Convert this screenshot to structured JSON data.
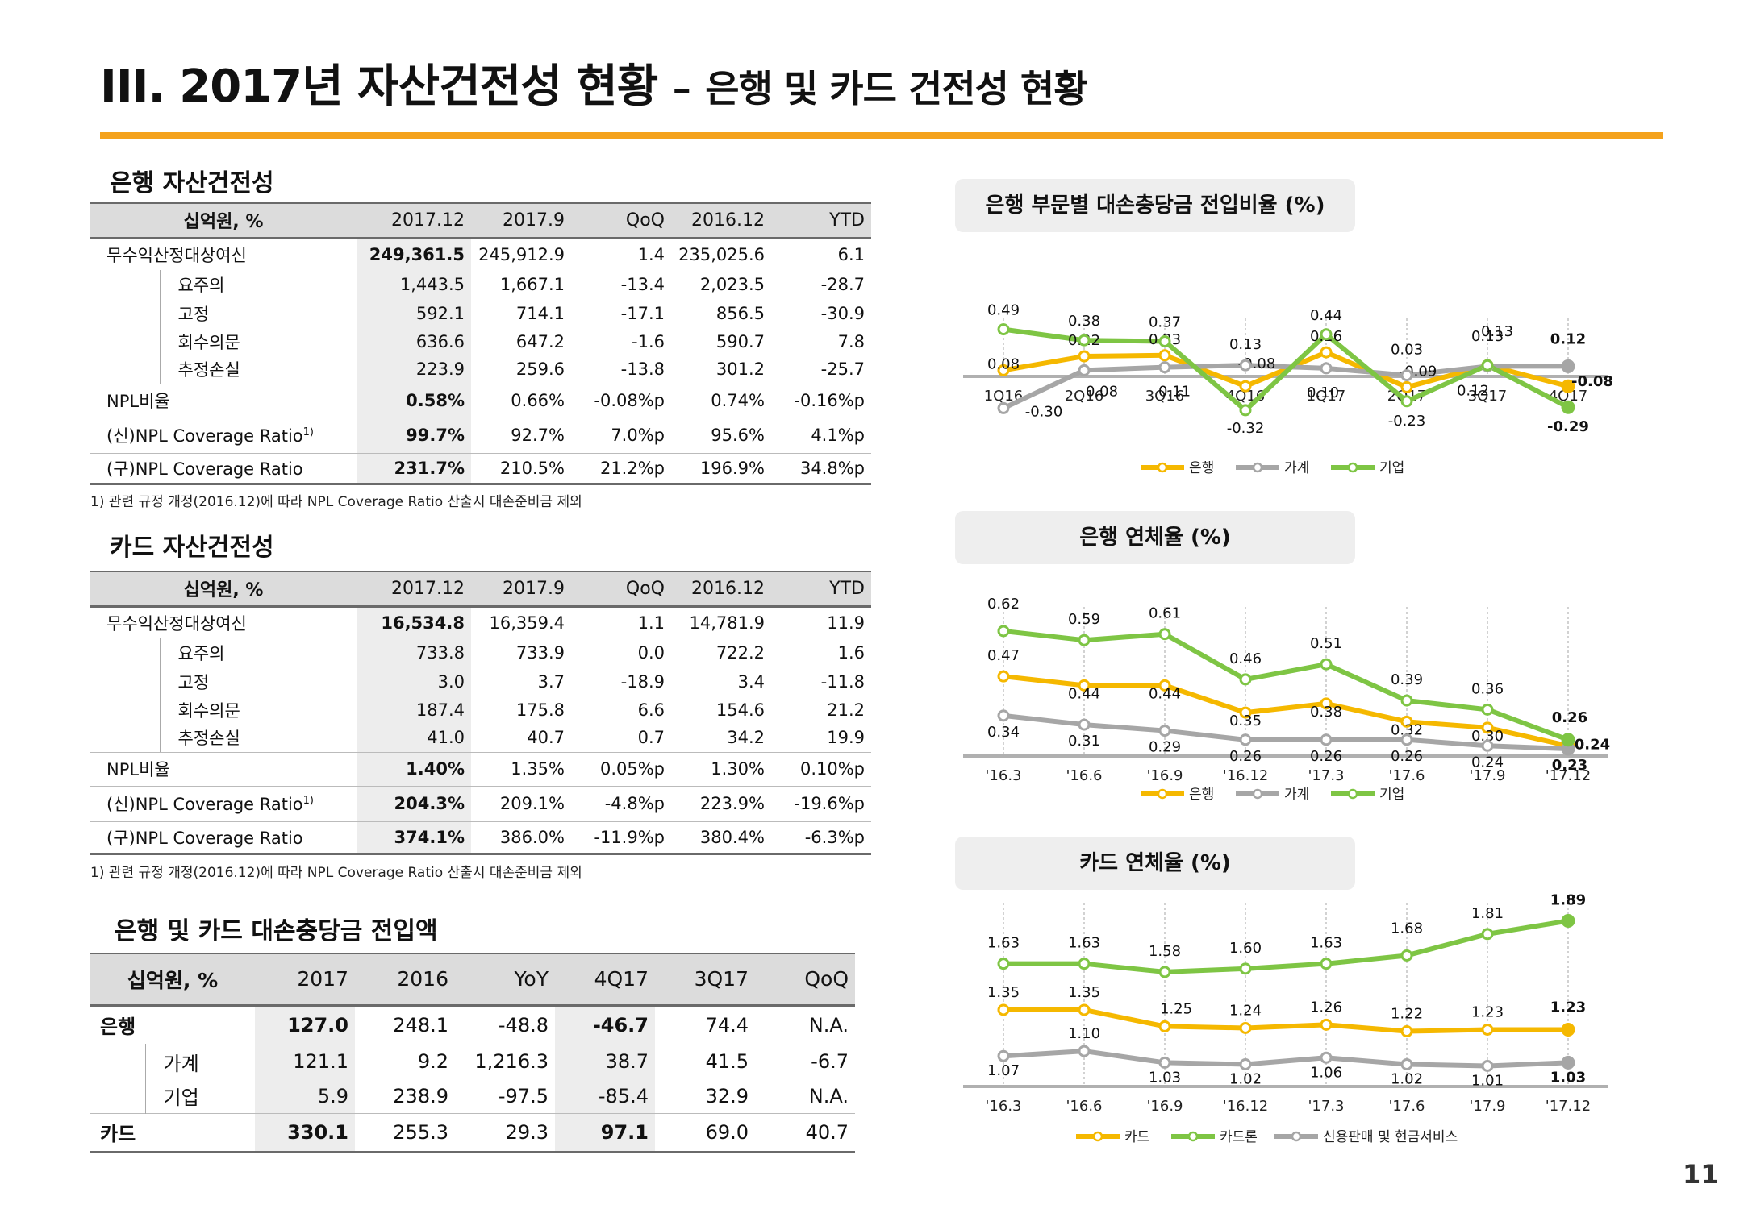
{
  "header": {
    "title_main": "III. 2017년 자산건전성 현황",
    "title_dash": "–",
    "title_sub": "은행 및 카드 건전성 현황"
  },
  "bank_asset": {
    "title": "은행 자산건전성",
    "columns": [
      "십억원, %",
      "2017.12",
      "2017.9",
      "QoQ",
      "2016.12",
      "YTD"
    ],
    "rows": [
      {
        "label": "무수익산정대상여신",
        "level": 0,
        "values": [
          "249,361.5",
          "245,912.9",
          "1.4",
          "235,025.6",
          "6.1"
        ]
      },
      {
        "label": "요주의",
        "level": 1,
        "values": [
          "1,443.5",
          "1,667.1",
          "-13.4",
          "2,023.5",
          "-28.7"
        ]
      },
      {
        "label": "고정",
        "level": 1,
        "values": [
          "592.1",
          "714.1",
          "-17.1",
          "856.5",
          "-30.9"
        ]
      },
      {
        "label": "회수의문",
        "level": 1,
        "values": [
          "636.6",
          "647.2",
          "-1.6",
          "590.7",
          "7.8"
        ]
      },
      {
        "label": "추정손실",
        "level": 1,
        "values": [
          "223.9",
          "259.6",
          "-13.8",
          "301.2",
          "-25.7"
        ]
      },
      {
        "label": "NPL비율",
        "level": 0,
        "values": [
          "0.58%",
          "0.66%",
          "-0.08%p",
          "0.74%",
          "-0.16%p"
        ]
      },
      {
        "label": "(신)NPL Coverage Ratio",
        "sup": "1)",
        "level": 0,
        "values": [
          "99.7%",
          "92.7%",
          "7.0%p",
          "95.6%",
          "4.1%p"
        ]
      },
      {
        "label": "(구)NPL Coverage Ratio",
        "level": 0,
        "values": [
          "231.7%",
          "210.5%",
          "21.2%p",
          "196.9%",
          "34.8%p"
        ]
      }
    ],
    "note": "1) 관련 규정 개정(2016.12)에 따라 NPL Coverage Ratio 산출시 대손준비금 제외"
  },
  "card_asset": {
    "title": "카드 자산건전성",
    "columns": [
      "십억원, %",
      "2017.12",
      "2017.9",
      "QoQ",
      "2016.12",
      "YTD"
    ],
    "rows": [
      {
        "label": "무수익산정대상여신",
        "level": 0,
        "values": [
          "16,534.8",
          "16,359.4",
          "1.1",
          "14,781.9",
          "11.9"
        ]
      },
      {
        "label": "요주의",
        "level": 1,
        "values": [
          "733.8",
          "733.9",
          "0.0",
          "722.2",
          "1.6"
        ]
      },
      {
        "label": "고정",
        "level": 1,
        "values": [
          "3.0",
          "3.7",
          "-18.9",
          "3.4",
          "-11.8"
        ]
      },
      {
        "label": "회수의문",
        "level": 1,
        "values": [
          "187.4",
          "175.8",
          "6.6",
          "154.6",
          "21.2"
        ]
      },
      {
        "label": "추정손실",
        "level": 1,
        "values": [
          "41.0",
          "40.7",
          "0.7",
          "34.2",
          "19.9"
        ]
      },
      {
        "label": "NPL비율",
        "level": 0,
        "values": [
          "1.40%",
          "1.35%",
          "0.05%p",
          "1.30%",
          "0.10%p"
        ]
      },
      {
        "label": "(신)NPL Coverage Ratio",
        "sup": "1)",
        "level": 0,
        "values": [
          "204.3%",
          "209.1%",
          "-4.8%p",
          "223.9%",
          "-19.6%p"
        ]
      },
      {
        "label": "(구)NPL Coverage Ratio",
        "level": 0,
        "values": [
          "374.1%",
          "386.0%",
          "-11.9%p",
          "380.4%",
          "-6.3%p"
        ]
      }
    ],
    "note": "1) 관련 규정 개정(2016.12)에 따라 NPL Coverage Ratio 산출시 대손준비금 제외"
  },
  "provision": {
    "title": "은행 및 카드 대손충당금 전입액",
    "columns": [
      "십억원, %",
      "2017",
      "2016",
      "YoY",
      "4Q17",
      "3Q17",
      "QoQ"
    ],
    "rows": [
      {
        "label": "은행",
        "level": 0,
        "values": [
          "127.0",
          "248.1",
          "-48.8",
          "-46.7",
          "74.4",
          "N.A."
        ]
      },
      {
        "label": "가계",
        "level": 1,
        "values": [
          "121.1",
          "9.2",
          "1,216.3",
          "38.7",
          "41.5",
          "-6.7"
        ]
      },
      {
        "label": "기업",
        "level": 1,
        "values": [
          "5.9",
          "238.9",
          "-97.5",
          "-85.4",
          "32.9",
          "N.A."
        ]
      },
      {
        "label": "카드",
        "level": 0,
        "values": [
          "330.1",
          "255.3",
          "29.3",
          "97.1",
          "69.0",
          "40.7"
        ]
      }
    ]
  },
  "chart_data": [
    {
      "type": "line",
      "title": "은행 부문별 대손충당금 전입비율 (%)",
      "categories": [
        "1Q16",
        "2Q16",
        "3Q16",
        "4Q16",
        "1Q17",
        "2Q17",
        "3Q17",
        "4Q17"
      ],
      "ylim": [
        -0.45,
        0.6
      ],
      "legend": "bottom",
      "series": [
        {
          "name": "은행",
          "color": "#f5b800",
          "values": [
            0.08,
            0.22,
            0.23,
            -0.08,
            0.26,
            -0.09,
            0.13,
            -0.08
          ]
        },
        {
          "name": "가계",
          "color": "#a6a6a6",
          "values": [
            -0.3,
            0.08,
            0.11,
            0.13,
            0.1,
            0.03,
            0.12,
            0.12
          ]
        },
        {
          "name": "기업",
          "color": "#7ec544",
          "values": [
            0.49,
            0.38,
            0.37,
            -0.32,
            0.44,
            -0.23,
            0.13,
            -0.29
          ]
        }
      ]
    },
    {
      "type": "line",
      "title": "은행 연체율 (%)",
      "categories": [
        "'16.3",
        "'16.6",
        "'16.9",
        "'16.12",
        "'17.3",
        "'17.6",
        "'17.9",
        "'17.12"
      ],
      "ylim": [
        0.15,
        0.7
      ],
      "legend": "bottom",
      "series": [
        {
          "name": "은행",
          "color": "#f5b800",
          "values": [
            0.47,
            0.44,
            0.44,
            0.35,
            0.38,
            0.32,
            0.3,
            0.24
          ]
        },
        {
          "name": "가계",
          "color": "#a6a6a6",
          "values": [
            0.34,
            0.31,
            0.29,
            0.26,
            0.26,
            0.26,
            0.24,
            0.23
          ]
        },
        {
          "name": "기업",
          "color": "#7ec544",
          "values": [
            0.62,
            0.59,
            0.61,
            0.46,
            0.51,
            0.39,
            0.36,
            0.26
          ]
        }
      ]
    },
    {
      "type": "line",
      "title": "카드 연체율 (%)",
      "categories": [
        "'16.3",
        "'16.6",
        "'16.9",
        "'16.12",
        "'17.3",
        "'17.6",
        "'17.9",
        "'17.12"
      ],
      "ylim": [
        0.9,
        2.0
      ],
      "legend": "bottom",
      "series": [
        {
          "name": "카드",
          "color": "#f5b800",
          "values": [
            1.35,
            1.35,
            1.25,
            1.24,
            1.26,
            1.22,
            1.23,
            1.23
          ]
        },
        {
          "name": "카드론",
          "color": "#7ec544",
          "values": [
            1.63,
            1.63,
            1.58,
            1.6,
            1.63,
            1.68,
            1.81,
            1.89
          ]
        },
        {
          "name": "신용판매 및 현금서비스",
          "color": "#a6a6a6",
          "values": [
            1.07,
            1.1,
            1.03,
            1.02,
            1.06,
            1.02,
            1.01,
            1.03
          ]
        }
      ]
    }
  ],
  "page_number": "11"
}
